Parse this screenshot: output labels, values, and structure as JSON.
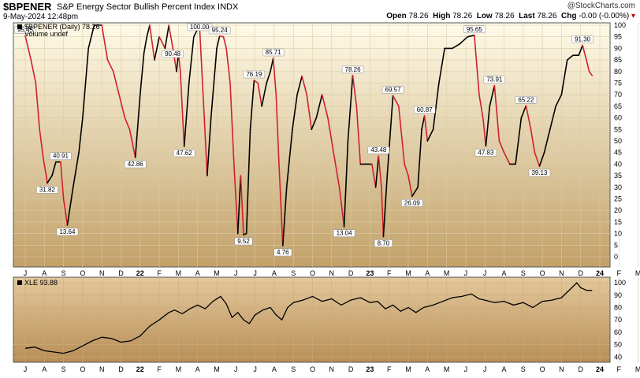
{
  "header": {
    "symbol": "$BPENER",
    "name": "S&P Energy Sector Bullish Percent Index",
    "exchange": "INDX",
    "credit": "@StockCharts.com",
    "date": "9-May-2024 12:48pm",
    "open_label": "Open",
    "open": "78.26",
    "high_label": "High",
    "high": "78.26",
    "low_label": "Low",
    "low": "78.26",
    "last_label": "Last",
    "last": "78.26",
    "chg_label": "Chg",
    "chg": "-0.00 (-0.00%)",
    "chg_marker": "▾"
  },
  "colors": {
    "up": "#000000",
    "down": "#d0202e",
    "panel_top": "#fffbe8",
    "panel_bottom": "#c2a168",
    "lower_top": "#e3c89c",
    "lower_bottom": "#b88e57"
  },
  "chart_data": [
    {
      "type": "line",
      "legend": "$BPENER (Daily) 78.26",
      "legend2": "Volume undef",
      "ylim": [
        0,
        100
      ],
      "yticks": [
        0,
        5,
        10,
        15,
        20,
        25,
        30,
        35,
        40,
        45,
        50,
        55,
        60,
        65,
        70,
        75,
        80,
        85,
        90,
        95,
        100
      ],
      "xlabels": [
        "J",
        "A",
        "S",
        "O",
        "N",
        "D",
        "22",
        "F",
        "M",
        "A",
        "M",
        "J",
        "J",
        "A",
        "S",
        "O",
        "N",
        "D",
        "23",
        "F",
        "M",
        "A",
        "M",
        "J",
        "J",
        "A",
        "S",
        "O",
        "N",
        "D",
        "24",
        "F",
        "M",
        "A",
        "M"
      ],
      "annotations": [
        {
          "t": 0.0,
          "v": 95.45,
          "label": "95.45"
        },
        {
          "t": 1.15,
          "v": 31.82,
          "label": "31.82"
        },
        {
          "t": 1.85,
          "v": 40.91,
          "label": "40.91"
        },
        {
          "t": 2.2,
          "v": 13.64,
          "label": "13.64"
        },
        {
          "t": 5.75,
          "v": 42.86,
          "label": "42.86"
        },
        {
          "t": 7.7,
          "v": 90.48,
          "label": "90.48"
        },
        {
          "t": 8.3,
          "v": 47.62,
          "label": "47.62"
        },
        {
          "t": 9.1,
          "v": 100.0,
          "label": "100.00"
        },
        {
          "t": 10.15,
          "v": 95.24,
          "label": "95.24"
        },
        {
          "t": 11.4,
          "v": 9.52,
          "label": "9.52"
        },
        {
          "t": 11.95,
          "v": 76.19,
          "label": "76.19"
        },
        {
          "t": 12.95,
          "v": 85.71,
          "label": "85.71"
        },
        {
          "t": 13.45,
          "v": 4.76,
          "label": "4.76"
        },
        {
          "t": 16.65,
          "v": 13.04,
          "label": "13.04"
        },
        {
          "t": 17.1,
          "v": 78.26,
          "label": "78.26"
        },
        {
          "t": 18.45,
          "v": 43.48,
          "label": "43.48"
        },
        {
          "t": 18.7,
          "v": 8.7,
          "label": "8.70"
        },
        {
          "t": 19.2,
          "v": 69.57,
          "label": "69.57"
        },
        {
          "t": 20.2,
          "v": 26.09,
          "label": "26.09"
        },
        {
          "t": 20.85,
          "v": 60.87,
          "label": "60.87"
        },
        {
          "t": 23.45,
          "v": 95.65,
          "label": "95.65"
        },
        {
          "t": 24.05,
          "v": 47.83,
          "label": "47.83"
        },
        {
          "t": 24.5,
          "v": 73.91,
          "label": "73.91"
        },
        {
          "t": 26.15,
          "v": 65.22,
          "label": "65.22"
        },
        {
          "t": 26.85,
          "v": 39.13,
          "label": "39.13"
        },
        {
          "t": 29.1,
          "v": 91.3,
          "label": "91.30"
        }
      ],
      "points": [
        [
          0.0,
          95.45
        ],
        [
          0.3,
          85
        ],
        [
          0.55,
          75
        ],
        [
          0.75,
          55
        ],
        [
          0.95,
          42
        ],
        [
          1.1,
          35
        ],
        [
          1.15,
          31.82
        ],
        [
          1.4,
          35
        ],
        [
          1.6,
          40.91
        ],
        [
          1.85,
          40.91
        ],
        [
          2.0,
          25
        ],
        [
          2.2,
          13.64
        ],
        [
          2.5,
          30
        ],
        [
          2.8,
          45
        ],
        [
          3.0,
          60
        ],
        [
          3.3,
          90
        ],
        [
          3.6,
          100
        ],
        [
          4.0,
          100
        ],
        [
          4.3,
          85
        ],
        [
          4.6,
          80
        ],
        [
          4.9,
          70
        ],
        [
          5.2,
          60
        ],
        [
          5.45,
          55
        ],
        [
          5.75,
          42.86
        ],
        [
          6.0,
          70
        ],
        [
          6.2,
          88
        ],
        [
          6.35,
          95
        ],
        [
          6.5,
          100
        ],
        [
          6.75,
          85
        ],
        [
          7.0,
          95
        ],
        [
          7.3,
          90
        ],
        [
          7.5,
          100
        ],
        [
          7.7,
          90.48
        ],
        [
          7.9,
          80
        ],
        [
          8.0,
          88
        ],
        [
          8.1,
          80
        ],
        [
          8.3,
          47.62
        ],
        [
          8.55,
          75
        ],
        [
          8.8,
          95
        ],
        [
          9.1,
          100
        ],
        [
          9.35,
          60
        ],
        [
          9.5,
          35
        ],
        [
          9.7,
          60
        ],
        [
          10.0,
          90
        ],
        [
          10.15,
          95.24
        ],
        [
          10.35,
          95
        ],
        [
          10.5,
          90
        ],
        [
          10.7,
          75
        ],
        [
          10.9,
          40
        ],
        [
          11.1,
          10
        ],
        [
          11.25,
          35
        ],
        [
          11.4,
          9.52
        ],
        [
          11.55,
          10
        ],
        [
          11.75,
          55
        ],
        [
          11.95,
          76.19
        ],
        [
          12.15,
          75
        ],
        [
          12.35,
          65
        ],
        [
          12.6,
          75
        ],
        [
          12.8,
          80
        ],
        [
          12.95,
          85.71
        ],
        [
          13.1,
          70
        ],
        [
          13.25,
          40
        ],
        [
          13.45,
          4.76
        ],
        [
          13.65,
          30
        ],
        [
          13.95,
          55
        ],
        [
          14.2,
          70
        ],
        [
          14.45,
          78
        ],
        [
          14.7,
          70
        ],
        [
          14.95,
          55
        ],
        [
          15.2,
          60
        ],
        [
          15.5,
          70
        ],
        [
          15.8,
          60
        ],
        [
          16.1,
          45
        ],
        [
          16.4,
          30
        ],
        [
          16.65,
          13.04
        ],
        [
          16.85,
          50
        ],
        [
          17.1,
          78.26
        ],
        [
          17.3,
          65
        ],
        [
          17.5,
          40
        ],
        [
          17.8,
          40
        ],
        [
          18.1,
          40
        ],
        [
          18.3,
          30
        ],
        [
          18.45,
          43.48
        ],
        [
          18.6,
          30
        ],
        [
          18.7,
          8.7
        ],
        [
          18.9,
          35
        ],
        [
          19.2,
          69.57
        ],
        [
          19.5,
          65
        ],
        [
          19.8,
          40
        ],
        [
          20.0,
          35
        ],
        [
          20.2,
          26.09
        ],
        [
          20.5,
          30
        ],
        [
          20.7,
          55
        ],
        [
          20.85,
          60.87
        ],
        [
          21.0,
          50
        ],
        [
          21.3,
          55
        ],
        [
          21.6,
          75
        ],
        [
          21.9,
          90
        ],
        [
          22.3,
          90
        ],
        [
          22.7,
          92
        ],
        [
          23.1,
          95
        ],
        [
          23.45,
          95.65
        ],
        [
          23.7,
          70
        ],
        [
          23.9,
          60
        ],
        [
          24.05,
          47.83
        ],
        [
          24.25,
          65
        ],
        [
          24.5,
          73.91
        ],
        [
          24.75,
          50
        ],
        [
          25.0,
          45
        ],
        [
          25.3,
          40
        ],
        [
          25.6,
          40
        ],
        [
          25.9,
          60
        ],
        [
          26.15,
          65.22
        ],
        [
          26.4,
          55
        ],
        [
          26.6,
          45
        ],
        [
          26.85,
          39.13
        ],
        [
          27.1,
          45
        ],
        [
          27.4,
          55
        ],
        [
          27.7,
          65
        ],
        [
          28.0,
          70
        ],
        [
          28.3,
          85
        ],
        [
          28.6,
          87
        ],
        [
          28.9,
          87
        ],
        [
          29.1,
          91.3
        ],
        [
          29.3,
          85
        ],
        [
          29.45,
          80
        ],
        [
          29.6,
          78.26
        ]
      ]
    },
    {
      "type": "line",
      "legend": "XLE 93.88",
      "ylim": [
        37,
        102
      ],
      "yticks": [
        40,
        50,
        60,
        70,
        80,
        90,
        100
      ],
      "xlabels": [
        "J",
        "A",
        "S",
        "O",
        "N",
        "D",
        "22",
        "F",
        "M",
        "A",
        "M",
        "J",
        "J",
        "A",
        "S",
        "O",
        "N",
        "D",
        "23",
        "F",
        "M",
        "A",
        "M",
        "J",
        "J",
        "A",
        "S",
        "O",
        "N",
        "D",
        "24",
        "F",
        "M",
        "A",
        "M"
      ],
      "points": [
        [
          0.0,
          47
        ],
        [
          0.5,
          48
        ],
        [
          1.0,
          45
        ],
        [
          1.5,
          44
        ],
        [
          2.0,
          43
        ],
        [
          2.5,
          45
        ],
        [
          3.0,
          49
        ],
        [
          3.5,
          53
        ],
        [
          4.0,
          56
        ],
        [
          4.5,
          55
        ],
        [
          5.0,
          52
        ],
        [
          5.5,
          53
        ],
        [
          6.0,
          57
        ],
        [
          6.5,
          65
        ],
        [
          7.0,
          70
        ],
        [
          7.5,
          76
        ],
        [
          7.8,
          78
        ],
        [
          8.2,
          75
        ],
        [
          8.6,
          79
        ],
        [
          9.0,
          82
        ],
        [
          9.4,
          79
        ],
        [
          9.8,
          85
        ],
        [
          10.2,
          89
        ],
        [
          10.5,
          83
        ],
        [
          10.8,
          72
        ],
        [
          11.1,
          76
        ],
        [
          11.4,
          70
        ],
        [
          11.7,
          67
        ],
        [
          12.0,
          74
        ],
        [
          12.4,
          78
        ],
        [
          12.8,
          80
        ],
        [
          13.1,
          74
        ],
        [
          13.4,
          70
        ],
        [
          13.7,
          80
        ],
        [
          14.0,
          84
        ],
        [
          14.5,
          86
        ],
        [
          15.0,
          89
        ],
        [
          15.5,
          85
        ],
        [
          16.0,
          87
        ],
        [
          16.5,
          82
        ],
        [
          17.0,
          86
        ],
        [
          17.5,
          88
        ],
        [
          18.0,
          84
        ],
        [
          18.4,
          85
        ],
        [
          18.8,
          79
        ],
        [
          19.2,
          82
        ],
        [
          19.6,
          77
        ],
        [
          20.0,
          80
        ],
        [
          20.4,
          76
        ],
        [
          20.8,
          80
        ],
        [
          21.3,
          82
        ],
        [
          21.8,
          85
        ],
        [
          22.3,
          88
        ],
        [
          22.8,
          89
        ],
        [
          23.3,
          91
        ],
        [
          23.7,
          87
        ],
        [
          24.0,
          86
        ],
        [
          24.5,
          84
        ],
        [
          25.0,
          85
        ],
        [
          25.5,
          82
        ],
        [
          26.0,
          84
        ],
        [
          26.5,
          80
        ],
        [
          27.0,
          85
        ],
        [
          27.5,
          86
        ],
        [
          28.0,
          88
        ],
        [
          28.4,
          94
        ],
        [
          28.8,
          100
        ],
        [
          29.0,
          96
        ],
        [
          29.3,
          94
        ],
        [
          29.6,
          93.88
        ]
      ]
    }
  ]
}
